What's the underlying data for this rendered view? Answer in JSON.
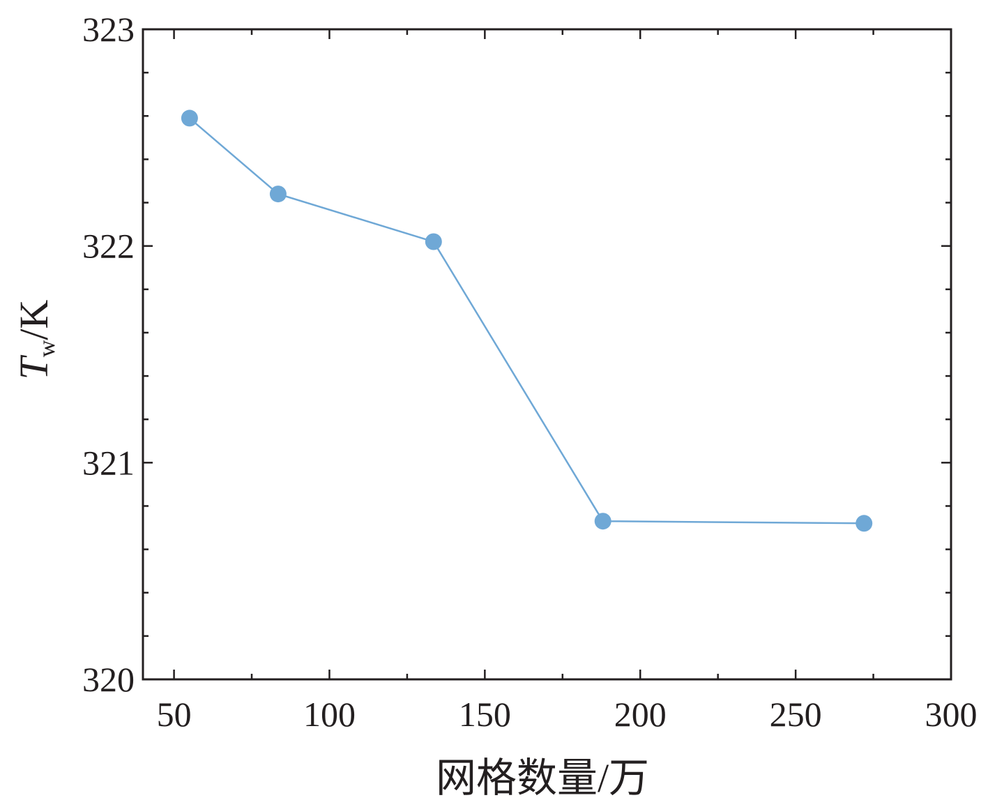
{
  "chart_data": {
    "type": "line",
    "title": "",
    "xlabel": "网格数量/万",
    "ylabel": {
      "symbol": "T",
      "subscript": "w",
      "unit": "/K"
    },
    "xlim": [
      40,
      300
    ],
    "ylim": [
      320,
      323
    ],
    "x_ticks": [
      50,
      100,
      150,
      200,
      250,
      300
    ],
    "x_tick_labels": [
      "50",
      "100",
      "150",
      "200",
      "250",
      "300"
    ],
    "x_minor_step": 25,
    "y_ticks": [
      320,
      321,
      322,
      323
    ],
    "y_tick_labels": [
      "320",
      "321",
      "322",
      "323"
    ],
    "y_minor_step": 0.2,
    "grid": false,
    "legend": "none",
    "series": [
      {
        "color": "#6fa8d6",
        "x": [
          55,
          83.5,
          133.5,
          188,
          272
        ],
        "y": [
          322.59,
          322.24,
          322.02,
          320.73,
          320.72
        ]
      }
    ]
  }
}
